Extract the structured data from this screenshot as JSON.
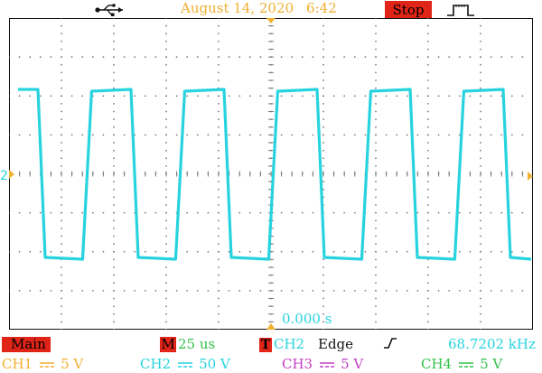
{
  "header": {
    "usb_icon": "usb-icon",
    "date": "August 14, 2020",
    "time": "6:42",
    "run_state": "Stop",
    "trigger_icon": "pulse-trigger-icon"
  },
  "display": {
    "grid": {
      "divisions_x": 10,
      "divisions_y": 8
    },
    "trace_color": "#27d3de",
    "grid_color": "#7a7a7a",
    "ch2_marker": "2",
    "ch2_marker_icon": "triangle-right-icon",
    "timebase_offset": "0.000 s"
  },
  "status": {
    "mode": "Main",
    "timebase_label": "M",
    "timebase_value": "25 us",
    "trigger_label": "T",
    "trigger_source": "CH2",
    "trigger_mode": "Edge",
    "trigger_slope_icon": "rising-edge-icon",
    "frequency": "68.7202 kHz"
  },
  "channels": [
    {
      "name": "CH1",
      "scale": "5 V",
      "color": "#f0b030"
    },
    {
      "name": "CH2",
      "scale": "50 V",
      "color": "#27d3de"
    },
    {
      "name": "CH3",
      "scale": "5 V",
      "color": "#c33fc3"
    },
    {
      "name": "CH4",
      "scale": "5 V",
      "color": "#33c24a"
    }
  ],
  "colors": {
    "accent_red": "#e02418",
    "date_color": "#f0b030"
  }
}
